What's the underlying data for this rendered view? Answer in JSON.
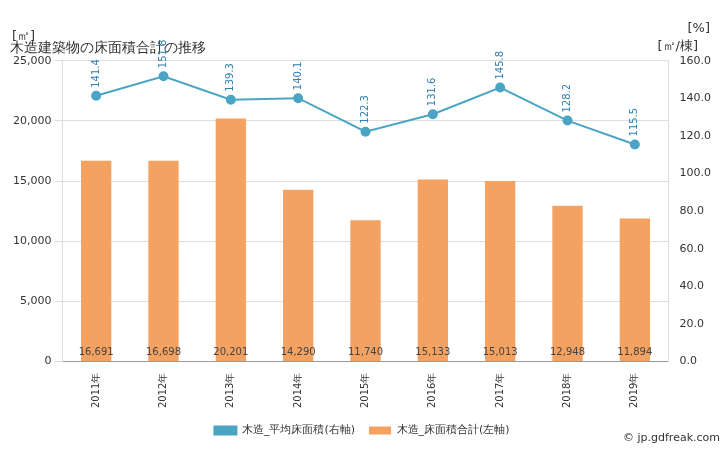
{
  "chart_data": {
    "type": "bar",
    "title": "木造建築物の床面積合計の推移",
    "ylabel": "[㎡]",
    "y2label": "[㎡/棟]",
    "y2unit": "[%]",
    "source": "© jp.gdfreak.com",
    "categories": [
      "2011年",
      "2012年",
      "2013年",
      "2014年",
      "2015年",
      "2016年",
      "2017年",
      "2018年",
      "2019年"
    ],
    "series": [
      {
        "name": "木造_床面積合計(左軸)",
        "type": "bar",
        "color": "#f4a261",
        "values": [
          16691,
          16698,
          20201,
          14290,
          11740,
          15133,
          15013,
          12948,
          11894
        ],
        "value_labels": [
          "16,691",
          "16,698",
          "20,201",
          "14,290",
          "11,740",
          "15,133",
          "15,013",
          "12,948",
          "11,894"
        ]
      },
      {
        "name": "木造_平均床面積(右軸)",
        "type": "line",
        "axis": "y2",
        "color": "#4aa5c4",
        "marker": "circle",
        "values": [
          141.4,
          151.8,
          139.3,
          140.1,
          122.3,
          131.6,
          145.8,
          128.2,
          115.5
        ]
      }
    ],
    "ylim": [
      0,
      25000
    ],
    "yticks": [
      0,
      {
        "value": 5000,
        "label": "5,000"
      },
      {
        "value": 10000,
        "label": "10,000"
      },
      {
        "value": 15000,
        "label": "15,000"
      },
      {
        "value": 20000,
        "label": "20,000"
      },
      {
        "value": 25000,
        "label": "25,000"
      }
    ],
    "y2lim": [
      0,
      160
    ],
    "y2ticks": [
      {
        "value": 0,
        "label": "0.0"
      },
      {
        "value": 20,
        "label": "20.0"
      },
      {
        "value": 40,
        "label": "40.0"
      },
      {
        "value": 60,
        "label": "60.0"
      },
      {
        "value": 80,
        "label": "80.0"
      },
      {
        "value": 100,
        "label": "100.0"
      },
      {
        "value": 120,
        "label": "120.0"
      },
      {
        "value": 140,
        "label": "140.0"
      },
      {
        "value": 160,
        "label": "160.0"
      }
    ],
    "grid": true,
    "legend": "bottom",
    "data_labels": true
  }
}
